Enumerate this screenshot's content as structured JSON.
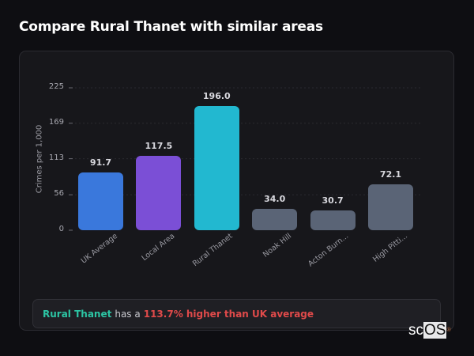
{
  "page": {
    "title": "Compare Rural Thanet with similar areas"
  },
  "chart_data": {
    "type": "bar",
    "title": "Compare Rural Thanet with similar areas",
    "xlabel": "",
    "ylabel": "Crimes per 1,000",
    "ylim": [
      0,
      225
    ],
    "yticks": [
      0,
      56,
      113,
      169,
      225
    ],
    "grid": true,
    "legend": "none",
    "categories": [
      "UK Average",
      "Local Area",
      "Rural Thanet",
      "Noak Hill",
      "Acton Burn...",
      "High Pitti..."
    ],
    "values": [
      91.7,
      117.5,
      196.0,
      34.0,
      30.7,
      72.1
    ],
    "value_labels": [
      "91.7",
      "117.5",
      "196.0",
      "34.0",
      "30.7",
      "72.1"
    ],
    "colors": [
      "#3a78dc",
      "#7b4fd6",
      "#22b8d0",
      "#5a6476",
      "#5a6476",
      "#5a6476"
    ]
  },
  "summary": {
    "area": "Rural Thanet",
    "connector": "has a",
    "comparison": "113.7% higher than UK average",
    "area_color": "#2cc5a4",
    "comparison_color": "#e04a4a"
  },
  "brand": {
    "prefix": "sc",
    "highlight": "OS",
    "mark": "®"
  }
}
